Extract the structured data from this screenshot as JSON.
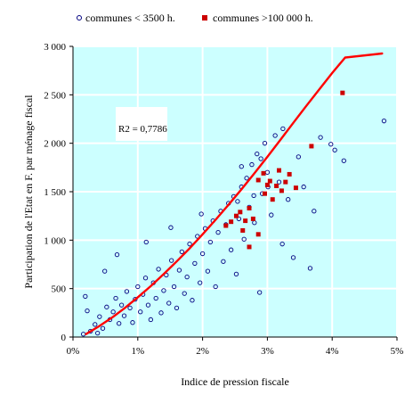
{
  "chart_data": {
    "type": "scatter",
    "xlabel": "Indice de pression fiscale",
    "ylabel": "Participation de l'Etat en F. par ménage fiscal",
    "x_format": "percent",
    "xlim": [
      0,
      0.05
    ],
    "ylim": [
      0,
      3000
    ],
    "x_ticks": [
      0,
      0.01,
      0.02,
      0.03,
      0.04,
      0.05
    ],
    "x_tick_labels": [
      "0%",
      "1%",
      "2%",
      "3%",
      "4%",
      "5%"
    ],
    "y_ticks": [
      0,
      500,
      1000,
      1500,
      2000,
      2500,
      3000
    ],
    "y_tick_labels": [
      "0",
      "500",
      "1 000",
      "1 500",
      "2 000",
      "2 500",
      "3 000"
    ],
    "grid": true,
    "background_color": "#ccffff",
    "legend_position": "top",
    "annotation": "R2 = 0,7786",
    "colors": {
      "small": "#000080",
      "large": "#cc0000",
      "trend": "#ff0000"
    },
    "series": [
      {
        "name": "communes < 3500 h.",
        "marker": "hollow-circle",
        "points": [
          [
            0.0022,
            270
          ],
          [
            0.0034,
            130
          ],
          [
            0.0041,
            210
          ],
          [
            0.0046,
            90
          ],
          [
            0.0052,
            310
          ],
          [
            0.0057,
            180
          ],
          [
            0.0062,
            260
          ],
          [
            0.0066,
            400
          ],
          [
            0.0071,
            140
          ],
          [
            0.0075,
            330
          ],
          [
            0.0079,
            220
          ],
          [
            0.0083,
            470
          ],
          [
            0.0088,
            300
          ],
          [
            0.0092,
            150
          ],
          [
            0.0096,
            390
          ],
          [
            0.01,
            520
          ],
          [
            0.0104,
            260
          ],
          [
            0.0108,
            440
          ],
          [
            0.0112,
            610
          ],
          [
            0.0116,
            330
          ],
          [
            0.012,
            180
          ],
          [
            0.0124,
            560
          ],
          [
            0.0128,
            400
          ],
          [
            0.0132,
            700
          ],
          [
            0.0136,
            250
          ],
          [
            0.014,
            480
          ],
          [
            0.0144,
            640
          ],
          [
            0.0148,
            350
          ],
          [
            0.0152,
            790
          ],
          [
            0.0156,
            520
          ],
          [
            0.016,
            300
          ],
          [
            0.0164,
            690
          ],
          [
            0.0168,
            880
          ],
          [
            0.0172,
            450
          ],
          [
            0.0176,
            620
          ],
          [
            0.018,
            960
          ],
          [
            0.0184,
            380
          ],
          [
            0.0188,
            760
          ],
          [
            0.0192,
            1040
          ],
          [
            0.0196,
            560
          ],
          [
            0.02,
            860
          ],
          [
            0.0204,
            1120
          ],
          [
            0.0208,
            680
          ],
          [
            0.0212,
            980
          ],
          [
            0.0216,
            1200
          ],
          [
            0.022,
            520
          ],
          [
            0.0224,
            1080
          ],
          [
            0.0228,
            1300
          ],
          [
            0.0232,
            780
          ],
          [
            0.0236,
            1160
          ],
          [
            0.024,
            1380
          ],
          [
            0.0244,
            900
          ],
          [
            0.0248,
            1450
          ],
          [
            0.0252,
            650
          ],
          [
            0.0256,
            1220
          ],
          [
            0.026,
            1550
          ],
          [
            0.0264,
            1010
          ],
          [
            0.0268,
            1640
          ],
          [
            0.0272,
            1340
          ],
          [
            0.0276,
            1780
          ],
          [
            0.028,
            1180
          ],
          [
            0.0284,
            1890
          ],
          [
            0.0288,
            460
          ],
          [
            0.0292,
            1480
          ],
          [
            0.0296,
            2000
          ],
          [
            0.03,
            1700
          ],
          [
            0.0306,
            1260
          ],
          [
            0.0312,
            2080
          ],
          [
            0.0318,
            1600
          ],
          [
            0.0324,
            2150
          ],
          [
            0.0332,
            1420
          ],
          [
            0.034,
            820
          ],
          [
            0.0348,
            1860
          ],
          [
            0.0356,
            1550
          ],
          [
            0.0366,
            710
          ],
          [
            0.0372,
            1300
          ],
          [
            0.0382,
            2060
          ],
          [
            0.0398,
            1990
          ],
          [
            0.0404,
            1930
          ],
          [
            0.0418,
            1820
          ],
          [
            0.048,
            2230
          ],
          [
            0.0016,
            30
          ],
          [
            0.0027,
            60
          ],
          [
            0.0038,
            40
          ],
          [
            0.0019,
            420
          ],
          [
            0.0049,
            680
          ],
          [
            0.0068,
            850
          ],
          [
            0.0113,
            980
          ],
          [
            0.0151,
            1130
          ],
          [
            0.0198,
            1270
          ],
          [
            0.0254,
            1400
          ],
          [
            0.0279,
            1460
          ],
          [
            0.0301,
            1550
          ],
          [
            0.0323,
            960
          ],
          [
            0.029,
            1840
          ],
          [
            0.026,
            1760
          ]
        ]
      },
      {
        "name": "communes >100 000 h.",
        "marker": "filled-square",
        "points": [
          [
            0.0236,
            1150
          ],
          [
            0.0244,
            1190
          ],
          [
            0.0252,
            1250
          ],
          [
            0.0258,
            1290
          ],
          [
            0.0262,
            1100
          ],
          [
            0.0266,
            1200
          ],
          [
            0.0272,
            1330
          ],
          [
            0.0278,
            1220
          ],
          [
            0.0286,
            1620
          ],
          [
            0.0294,
            1690
          ],
          [
            0.0296,
            1480
          ],
          [
            0.03,
            1570
          ],
          [
            0.0304,
            1610
          ],
          [
            0.0308,
            1420
          ],
          [
            0.0314,
            1560
          ],
          [
            0.0318,
            1720
          ],
          [
            0.0322,
            1510
          ],
          [
            0.0328,
            1600
          ],
          [
            0.0334,
            1680
          ],
          [
            0.0344,
            1540
          ],
          [
            0.0368,
            1970
          ],
          [
            0.0416,
            2520
          ],
          [
            0.0272,
            930
          ],
          [
            0.0286,
            1060
          ]
        ]
      }
    ],
    "trendline": {
      "name": "trend",
      "points": [
        [
          0.002,
          30
        ],
        [
          0.004,
          110
        ],
        [
          0.006,
          200
        ],
        [
          0.008,
          300
        ],
        [
          0.01,
          410
        ],
        [
          0.012,
          525
        ],
        [
          0.014,
          650
        ],
        [
          0.016,
          780
        ],
        [
          0.018,
          915
        ],
        [
          0.02,
          1060
        ],
        [
          0.022,
          1210
        ],
        [
          0.024,
          1365
        ],
        [
          0.026,
          1525
        ],
        [
          0.028,
          1690
        ],
        [
          0.03,
          1860
        ],
        [
          0.032,
          2035
        ],
        [
          0.034,
          2210
        ],
        [
          0.036,
          2385
        ],
        [
          0.038,
          2555
        ],
        [
          0.04,
          2725
        ],
        [
          0.042,
          2885
        ],
        [
          0.0477,
          3060
        ]
      ]
    }
  }
}
